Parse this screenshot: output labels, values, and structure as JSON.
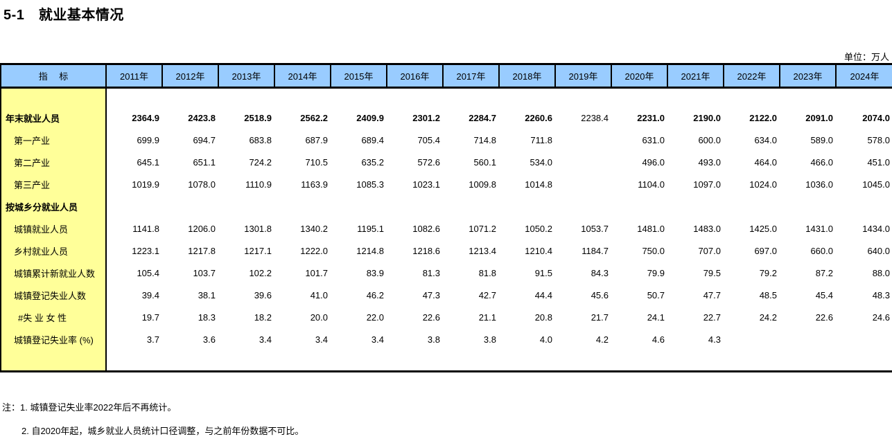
{
  "title": "5-1　就业基本情况",
  "unit_label": "单位：万人",
  "colors": {
    "header_bg": "#99CCFF",
    "indicator_bg": "#FFFF99",
    "border": "#000000"
  },
  "table": {
    "indicator_header": "指　 标",
    "years": [
      "2011年",
      "2012年",
      "2013年",
      "2014年",
      "2015年",
      "2016年",
      "2017年",
      "2018年",
      "2019年",
      "2020年",
      "2021年",
      "2022年",
      "2023年",
      "2024年"
    ],
    "rows": [
      {
        "label": "年末就业人员",
        "bold": true,
        "indent": 0,
        "values_bold": true,
        "plain_indices": [
          8
        ],
        "values": [
          "2364.9",
          "2423.8",
          "2518.9",
          "2562.2",
          "2409.9",
          "2301.2",
          "2284.7",
          "2260.6",
          "2238.4",
          "2231.0",
          "2190.0",
          "2122.0",
          "2091.0",
          "2074.0"
        ]
      },
      {
        "label": "第一产业",
        "bold": false,
        "indent": 1,
        "values": [
          "699.9",
          "694.7",
          "683.8",
          "687.9",
          "689.4",
          "705.4",
          "714.8",
          "711.8",
          "",
          "631.0",
          "600.0",
          "634.0",
          "589.0",
          "578.0"
        ]
      },
      {
        "label": "第二产业",
        "bold": false,
        "indent": 1,
        "values": [
          "645.1",
          "651.1",
          "724.2",
          "710.5",
          "635.2",
          "572.6",
          "560.1",
          "534.0",
          "",
          "496.0",
          "493.0",
          "464.0",
          "466.0",
          "451.0"
        ]
      },
      {
        "label": "第三产业",
        "bold": false,
        "indent": 1,
        "values": [
          "1019.9",
          "1078.0",
          "1110.9",
          "1163.9",
          "1085.3",
          "1023.1",
          "1009.8",
          "1014.8",
          "",
          "1104.0",
          "1097.0",
          "1024.0",
          "1036.0",
          "1045.0"
        ]
      },
      {
        "label": "按城乡分就业人员",
        "bold": true,
        "indent": 0,
        "values": [
          "",
          "",
          "",
          "",
          "",
          "",
          "",
          "",
          "",
          "",
          "",
          "",
          "",
          ""
        ]
      },
      {
        "label": "城镇就业人员",
        "bold": false,
        "indent": 1,
        "values": [
          "1141.8",
          "1206.0",
          "1301.8",
          "1340.2",
          "1195.1",
          "1082.6",
          "1071.2",
          "1050.2",
          "1053.7",
          "1481.0",
          "1483.0",
          "1425.0",
          "1431.0",
          "1434.0"
        ]
      },
      {
        "label": "乡村就业人员",
        "bold": false,
        "indent": 1,
        "values": [
          "1223.1",
          "1217.8",
          "1217.1",
          "1222.0",
          "1214.8",
          "1218.6",
          "1213.4",
          "1210.4",
          "1184.7",
          "750.0",
          "707.0",
          "697.0",
          "660.0",
          "640.0"
        ]
      },
      {
        "label": "城镇累计新就业人数",
        "bold": false,
        "indent": 1,
        "values": [
          "105.4",
          "103.7",
          "102.2",
          "101.7",
          "83.9",
          "81.3",
          "81.8",
          "91.5",
          "84.3",
          "79.9",
          "79.5",
          "79.2",
          "87.2",
          "88.0"
        ]
      },
      {
        "label": "城镇登记失业人数",
        "bold": false,
        "indent": 1,
        "values": [
          "39.4",
          "38.1",
          "39.6",
          "41.0",
          "46.2",
          "47.3",
          "42.7",
          "44.4",
          "45.6",
          "50.7",
          "47.7",
          "48.5",
          "45.4",
          "48.3"
        ]
      },
      {
        "label": "#失 业 女 性",
        "bold": false,
        "indent": 2,
        "values": [
          "19.7",
          "18.3",
          "18.2",
          "20.0",
          "22.0",
          "22.6",
          "21.1",
          "20.8",
          "21.7",
          "24.1",
          "22.7",
          "24.2",
          "22.6",
          "24.6"
        ]
      },
      {
        "label": "城镇登记失业率 (%)",
        "bold": false,
        "indent": 1,
        "values": [
          "3.7",
          "3.6",
          "3.4",
          "3.4",
          "3.4",
          "3.8",
          "3.8",
          "4.0",
          "4.2",
          "4.6",
          "4.3",
          "",
          "",
          ""
        ]
      }
    ]
  },
  "notes": [
    "注：1. 城镇登记失业率2022年后不再统计。",
    "2. 自2020年起，城乡就业人员统计口径调整，与之前年份数据不可比。"
  ]
}
